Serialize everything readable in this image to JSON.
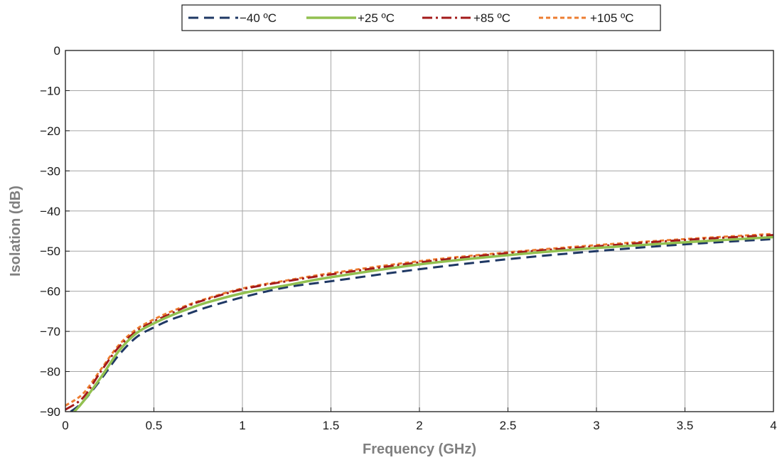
{
  "chart_data": {
    "type": "line",
    "xlabel": "Frequency (GHz)",
    "ylabel": "Isolation (dB)",
    "xlim": [
      0,
      4
    ],
    "ylim": [
      -90,
      0
    ],
    "xticks": [
      {
        "value": 0,
        "label": "0"
      },
      {
        "value": 0.5,
        "label": "0.5"
      },
      {
        "value": 1,
        "label": "1"
      },
      {
        "value": 1.5,
        "label": "1.5"
      },
      {
        "value": 2,
        "label": "2"
      },
      {
        "value": 2.5,
        "label": "2.5"
      },
      {
        "value": 3,
        "label": "3"
      },
      {
        "value": 3.5,
        "label": "3.5"
      },
      {
        "value": 4,
        "label": "4"
      }
    ],
    "yticks": [
      {
        "value": 0,
        "label": "0"
      },
      {
        "value": -10,
        "label": "−10"
      },
      {
        "value": -20,
        "label": "−20"
      },
      {
        "value": -30,
        "label": "−30"
      },
      {
        "value": -40,
        "label": "−40"
      },
      {
        "value": -50,
        "label": "−50"
      },
      {
        "value": -60,
        "label": "−60"
      },
      {
        "value": -70,
        "label": "−70"
      },
      {
        "value": -80,
        "label": "−80"
      },
      {
        "value": -90,
        "label": "−90"
      }
    ],
    "grid": true,
    "legend_position": "top-center",
    "series": [
      {
        "name": "−40 ºC",
        "color": "#1f3864",
        "dash": "dash",
        "x": [
          0.03,
          0.1,
          0.2,
          0.3,
          0.4,
          0.5,
          0.6,
          0.7,
          0.8,
          1.0,
          1.25,
          1.5,
          2.0,
          2.5,
          3.0,
          3.5,
          4.0
        ],
        "y": [
          -90,
          -87.5,
          -82,
          -76,
          -71.5,
          -69,
          -67,
          -65.5,
          -64,
          -61.5,
          -59,
          -57.5,
          -54.5,
          -52,
          -50,
          -48.3,
          -47
        ]
      },
      {
        "name": "+25 ºC",
        "color": "#92c050",
        "dash": "solid",
        "x": [
          0.05,
          0.1,
          0.2,
          0.3,
          0.4,
          0.5,
          0.6,
          0.7,
          0.8,
          1.0,
          1.25,
          1.5,
          2.0,
          2.5,
          3.0,
          3.5,
          4.0
        ],
        "y": [
          -90,
          -87.5,
          -81.5,
          -75,
          -70.5,
          -68,
          -66,
          -64.3,
          -62.8,
          -60.5,
          -58.5,
          -56.5,
          -53.3,
          -51,
          -49.2,
          -47.8,
          -46.5
        ]
      },
      {
        "name": "+85 ºC",
        "color": "#a31a1a",
        "dash": "dashdot",
        "x": [
          0,
          0.1,
          0.2,
          0.3,
          0.4,
          0.5,
          0.6,
          0.7,
          0.8,
          1.0,
          1.25,
          1.5,
          2.0,
          2.5,
          3.0,
          3.5,
          4.0
        ],
        "y": [
          -89.5,
          -86.5,
          -80,
          -74,
          -70,
          -67.5,
          -65.5,
          -63.5,
          -62,
          -59.5,
          -57.5,
          -55.8,
          -52.8,
          -50.5,
          -48.8,
          -47.2,
          -46
        ]
      },
      {
        "name": "+105 ºC",
        "color": "#ed7d31",
        "dash": "dot",
        "x": [
          0,
          0.1,
          0.2,
          0.3,
          0.4,
          0.5,
          0.6,
          0.7,
          0.8,
          1.0,
          1.25,
          1.5,
          2.0,
          2.5,
          3.0,
          3.5,
          4.0
        ],
        "y": [
          -88.5,
          -85.5,
          -79.5,
          -73.5,
          -69.5,
          -67,
          -65,
          -63.3,
          -61.8,
          -59.3,
          -57.3,
          -55.5,
          -52.5,
          -50.3,
          -48.5,
          -47,
          -45.7
        ]
      }
    ]
  }
}
